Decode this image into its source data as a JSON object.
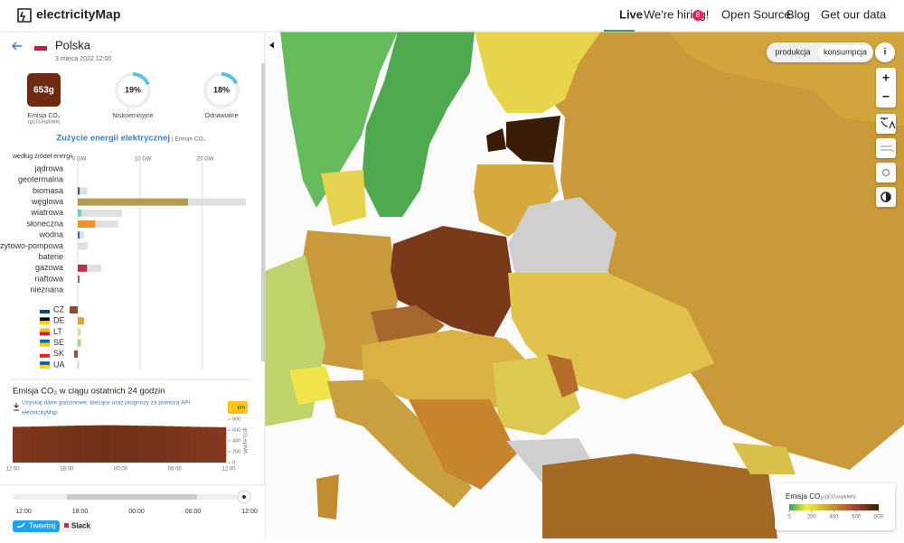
{
  "nav": {
    "logo": "electricityMap",
    "links": [
      "Live",
      "We're hiring!",
      "Open Source",
      "Blog",
      "Get our data"
    ],
    "badge": "8"
  },
  "zone": {
    "name": "Polska",
    "datetime": "3 marca 2022 12:00"
  },
  "kpis": {
    "carbon": {
      "label": "653g",
      "title": "Emisja CO₂",
      "unit": "(gCO₂eq/kWh)"
    },
    "low_carbon": {
      "value": 19,
      "label": "19%",
      "title": "Niskoemisyjne"
    },
    "renewable": {
      "value": 18,
      "label": "18%",
      "title": "Odnawialne"
    }
  },
  "breakdown": {
    "title": "Zużycie energii elektrycznej",
    "subtitle": "| Emisje CO₂",
    "group_label": "według źródeł energii",
    "xlim": [
      0,
      27
    ],
    "xticks": [
      {
        "value": 0,
        "label": "0 GW"
      },
      {
        "value": 10,
        "label": "10 GW"
      },
      {
        "value": 20,
        "label": "20 GW"
      }
    ],
    "categories": [
      "jądrowa",
      "geotermalna",
      "biomasa",
      "węglowa",
      "wiatrowa",
      "słoneczna",
      "wodna",
      "szczytowo-pompowa",
      "baterie",
      "gazowa",
      "naftowa",
      "nieznana"
    ],
    "values": [
      0,
      0,
      0.3,
      17.7,
      0.6,
      2.8,
      0.3,
      0,
      0,
      1.5,
      0.3,
      0
    ],
    "capacity": [
      0,
      0,
      1.6,
      27,
      7.1,
      6.5,
      1.0,
      1.6,
      0,
      3.8,
      0.4,
      0
    ],
    "colors": [
      "#ae8b5e",
      "#c0522e",
      "#166a57",
      "#b49b4a",
      "#74cdb9",
      "#f28e2b",
      "#2772b2",
      "#0052cc",
      "#b3b3b3",
      "#bb2f51",
      "#867d66",
      "#acacac"
    ],
    "exchange": {
      "codes": [
        "CZ",
        "DE",
        "LT",
        "SE",
        "SK",
        "UA"
      ],
      "values": [
        -1.3,
        1.0,
        0.5,
        0.5,
        -0.6,
        0.2
      ],
      "colors": [
        "#8c4a2a",
        "#d6a24a",
        "#dadab0",
        "#a9d38a",
        "#8b5a3c",
        "#d0d0d0"
      ]
    }
  },
  "history": {
    "title": "Emisja CO₂ w ciągu ostatnich 24 godzin",
    "api_text": [
      "Uzyskaj dane godzinowe, bieżące oraz prognozy za pomocą API",
      "electricityMap"
    ],
    "badge": "pro",
    "y_label": "gCO₂eq/kWh",
    "values": [
      660,
      662,
      665,
      668,
      672,
      676,
      680,
      684,
      686,
      688,
      690,
      689,
      687,
      684,
      680,
      678,
      676,
      672,
      668,
      664,
      660,
      657,
      655,
      653
    ],
    "ylim": [
      0,
      800
    ],
    "yticks": [
      0,
      200,
      400,
      600,
      800
    ],
    "xticks": [
      "12:00",
      "18:00",
      "00:00",
      "06:00",
      "12:00"
    ]
  },
  "timeline": {
    "ticks": [
      "12:00",
      "18:00",
      "00:00",
      "06:00",
      "12:00"
    ]
  },
  "share": [
    "Tweetnij",
    "Slack"
  ],
  "map_controls": {
    "modes": [
      "produkcja",
      "konsumpcja"
    ],
    "info": "i",
    "zoom_in": "+",
    "zoom_out": "−"
  },
  "legend": {
    "title": "Emisja CO₂",
    "unit": "(gCO₂eq/kWh)",
    "range": [
      0,
      800
    ],
    "ticks": [
      0,
      200,
      400,
      600,
      800
    ]
  }
}
